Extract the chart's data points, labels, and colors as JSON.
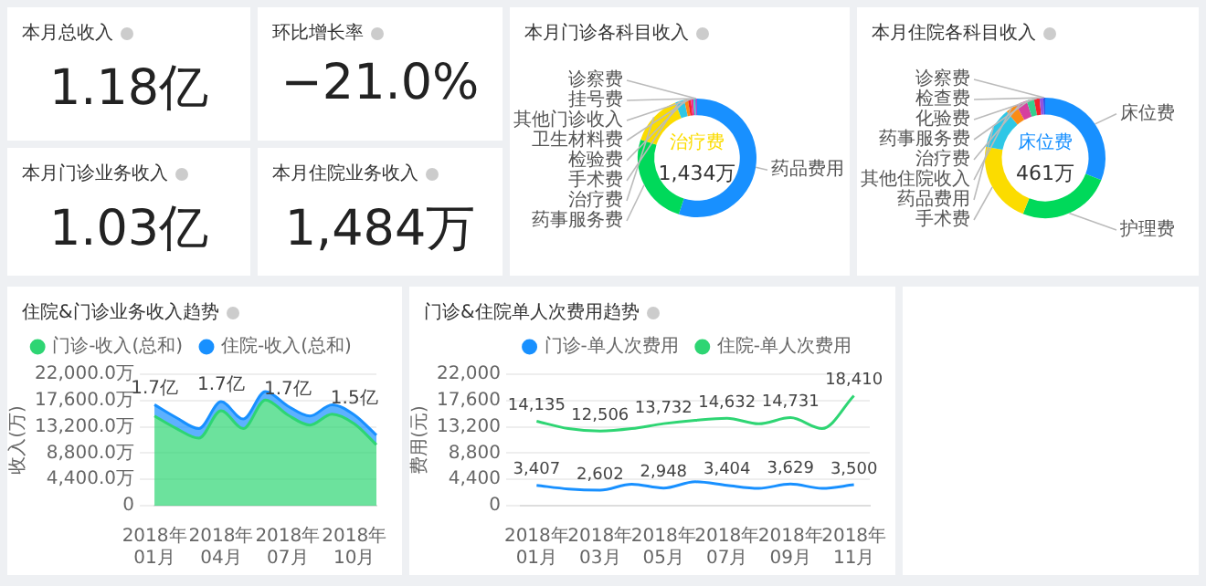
{
  "chart_data": [
    {
      "type": "other",
      "title": "本月总收入",
      "annotations": [
        "1.18亿"
      ]
    },
    {
      "type": "other",
      "title": "环比增长率",
      "annotations": [
        "−21.0%"
      ]
    },
    {
      "type": "other",
      "title": "本月门诊业务收入",
      "annotations": [
        "1.03亿"
      ]
    },
    {
      "type": "other",
      "title": "本月住院业务收入",
      "annotations": [
        "1,484万"
      ]
    },
    {
      "type": "donut",
      "title": "本月门诊各科目收入",
      "categories": [
        "药品费用",
        "药事服务费",
        "治疗费",
        "手术费",
        "检验费",
        "卫生材料费",
        "其他门诊收入",
        "挂号费",
        "诊察费"
      ],
      "values": [
        55,
        25,
        14,
        2.5,
        1,
        0.8,
        0.7,
        0.5,
        0.5
      ],
      "colors": [
        "#1890ff",
        "#00d95a",
        "#fbdc00",
        "#2ec7e6",
        "#fa8c16",
        "#f5222d",
        "#eb2f96",
        "#36cfc9",
        "#9254de"
      ],
      "annotations": [
        "治疗费",
        "1,434万"
      ]
    },
    {
      "type": "donut",
      "title": "本月住院各科目收入",
      "categories": [
        "床位费",
        "护理费",
        "手术费",
        "药品费用",
        "其他住院收入",
        "治疗费",
        "药事服务费",
        "化验费",
        "检查费",
        "诊察费"
      ],
      "values": [
        31,
        25,
        22,
        11,
        3,
        3,
        2,
        1.5,
        1,
        0.5
      ],
      "colors": [
        "#1890ff",
        "#00d95a",
        "#fbdc00",
        "#2ec7e6",
        "#fa8c16",
        "#d6409f",
        "#36cf8f",
        "#f5222d",
        "#9254de",
        "#2f54eb"
      ],
      "annotations": [
        "床位费",
        "461万"
      ]
    },
    {
      "type": "area",
      "title": "住院&门诊业务收入趋势",
      "stacked": true,
      "ylabel": "收入(万)",
      "legend": "top",
      "annotations": [
        {
          "text": "1.7亿",
          "x": "2018年01月",
          "y": 16900
        },
        {
          "text": "1.7亿",
          "x": "2018年04月",
          "y": 17400
        },
        {
          "text": "1.7亿",
          "x": "2018年07月",
          "y": 16700
        },
        {
          "text": "1.5亿",
          "x": "2018年10月",
          "y": 15200
        }
      ],
      "grid": "y",
      "categories": [
        "2018年01月",
        null,
        null,
        "2018年04月",
        null,
        null,
        "2018年07月",
        null,
        null,
        "2018年10月",
        null
      ],
      "ylim": [
        0,
        22000
      ],
      "yticks": [
        {
          "value": 0,
          "label": "0"
        },
        {
          "value": 4400,
          "label": "4,400.0万"
        },
        {
          "value": 8800,
          "label": "8,800.0万"
        },
        {
          "value": 13200,
          "label": "13,200.0万"
        },
        {
          "value": 17600,
          "label": "17,600.0万"
        },
        {
          "value": 22000,
          "label": "22,000.0万"
        }
      ],
      "series": [
        {
          "name": "门诊-收入(总和)",
          "color": "#2ed573",
          "values": [
            15000,
            12900,
            11300,
            15900,
            12900,
            17700,
            15200,
            13500,
            15300,
            13700,
            10200
          ]
        },
        {
          "name": "住院-收入(总和)",
          "color": "#1890ff",
          "values": [
            1900,
            1800,
            1600,
            1500,
            1600,
            1400,
            1500,
            1500,
            1600,
            1500,
            1600
          ]
        }
      ]
    },
    {
      "type": "line",
      "title": "门诊&住院单人次费用趋势",
      "ylabel": "费用(元)",
      "legend": "top right",
      "grid": "y",
      "categories": [
        "2018年01月",
        null,
        "2018年03月",
        null,
        "2018年05月",
        null,
        "2018年07月",
        null,
        "2018年09月",
        null,
        "2018年11月"
      ],
      "ylim": [
        0,
        22000
      ],
      "yticks": [
        0,
        {
          "value": 4400,
          "label": "4,400"
        },
        {
          "value": 8800,
          "label": "8,800"
        },
        {
          "value": 13200,
          "label": "13,200"
        },
        {
          "value": 17600,
          "label": "17,600"
        },
        {
          "value": 22000,
          "label": "22,000"
        }
      ],
      "series": [
        {
          "name": "门诊-单人次费用",
          "color": "#1890ff",
          "values": [
            3407,
            2800,
            2602,
            3600,
            2948,
            4000,
            3404,
            2900,
            3629,
            2900,
            3500
          ],
          "value_labels": [
            "3,407",
            null,
            "2,602",
            null,
            "2,948",
            null,
            "3,404",
            null,
            "3,629",
            null,
            "3,500"
          ]
        },
        {
          "name": "住院-单人次费用",
          "color": "#2ed573",
          "values": [
            14135,
            12900,
            12506,
            12900,
            13732,
            14300,
            14632,
            13700,
            14731,
            12900,
            18410
          ],
          "value_labels": [
            "14,135",
            null,
            "12,506",
            null,
            "13,732",
            null,
            "14,632",
            null,
            "14,731",
            null,
            "18,410"
          ]
        }
      ]
    }
  ]
}
